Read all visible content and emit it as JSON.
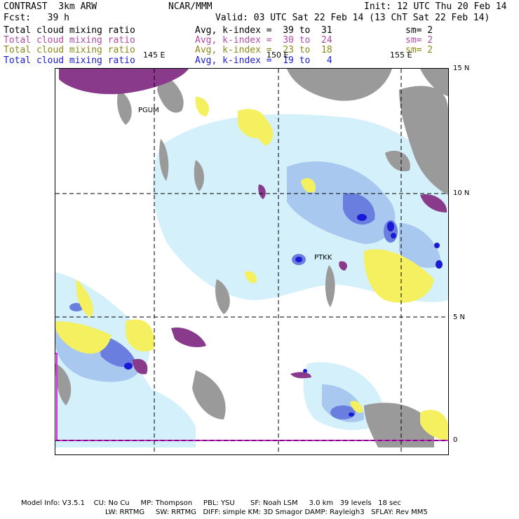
{
  "header": {
    "model_name": "CONTRAST  3km ARW",
    "org": "NCAR/MMM",
    "init": "Init: 12 UTC Thu 20 Feb 14",
    "fcst": "Fcst:   39 h",
    "valid": "Valid: 03 UTC Sat 22 Feb 14 (13 ChT Sat 22 Feb 14)"
  },
  "fields": [
    {
      "name": "Total cloud mixing ratio",
      "range": "Avg, k-index =  39 to  31",
      "sm": "sm= 2",
      "color": "#000000"
    },
    {
      "name": "Total cloud mixing ratio",
      "range": "Avg, k-index =  30 to  24",
      "sm": "sm= 2",
      "color": "#b04ca8"
    },
    {
      "name": "Total cloud mixing ratio",
      "range": "Avg, k-index =  23 to  18",
      "sm": "sm= 2",
      "color": "#8a8a1a"
    },
    {
      "name": "Total cloud mixing ratio",
      "range": "Avg, k-index =  19 to   4",
      "sm": "",
      "color": "#1a1ad6"
    }
  ],
  "lon_labels": [
    "145 E",
    "150 E",
    "155 E"
  ],
  "lat_labels": [
    "15 N",
    "10 N",
    "5 N",
    "0"
  ],
  "stations": [
    "PGUM",
    "PTKK"
  ],
  "footer": {
    "line1": "Model Info: V3.5.1    CU: No Cu     MP: Thompson     PBL: YSU       SF: Noah LSM     3.0 km   39 levels   18 sec",
    "line2": "LW: RRTMG     SW: RRTMG   DIFF: simple KM: 3D Smagor DAMP: Rayleigh3   SFLAY: Rev MM5"
  },
  "colors": {
    "light_blue": "#d4f0fa",
    "mid_blue": "#a8c8f0",
    "blue": "#6a7ee0",
    "dark_blue": "#1a1ad6",
    "gray": "#9a9a9a",
    "yellow": "#f5f060",
    "purple": "#8a3a8a",
    "magenta": "#e020e0"
  }
}
